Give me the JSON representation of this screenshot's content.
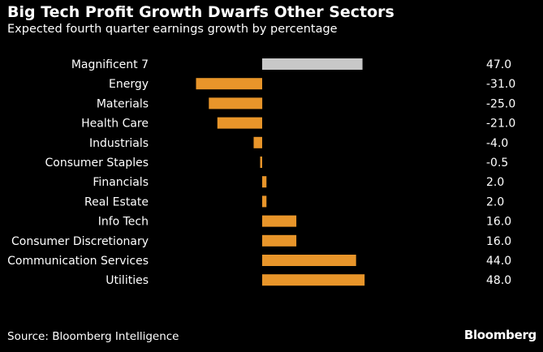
{
  "header": {
    "title": "Big Tech Profit Growth Dwarfs Other Sectors",
    "subtitle": "Expected fourth quarter earnings growth by percentage"
  },
  "footer": {
    "source": "Source: Bloomberg Intelligence",
    "brand": "Bloomberg"
  },
  "colors": {
    "background": "#000000",
    "highlight_bar": "#c8c8c8",
    "bar": "#e8952a",
    "text": "#ffffff"
  },
  "chart_data": {
    "type": "bar",
    "orientation": "horizontal",
    "title": "Big Tech Profit Growth Dwarfs Other Sectors",
    "subtitle": "Expected fourth quarter earnings growth by percentage",
    "categories": [
      "Magnificent 7",
      "Energy",
      "Materials",
      "Health Care",
      "Industrials",
      "Consumer Staples",
      "Financials",
      "Real Estate",
      "Info Tech",
      "Consumer Discretionary",
      "Communication Services",
      "Utilities"
    ],
    "values": [
      47.0,
      -31.0,
      -25.0,
      -21.0,
      -4.0,
      -0.5,
      2.0,
      2.0,
      16.0,
      16.0,
      44.0,
      48.0
    ],
    "value_labels": [
      "47.0",
      "-31.0",
      "-25.0",
      "-21.0",
      "-4.0",
      "-0.5",
      "2.0",
      "2.0",
      "16.0",
      "16.0",
      "44.0",
      "48.0"
    ],
    "highlight_index": 0,
    "xlim": [
      -31,
      48
    ],
    "grid": false,
    "legend": "none"
  }
}
